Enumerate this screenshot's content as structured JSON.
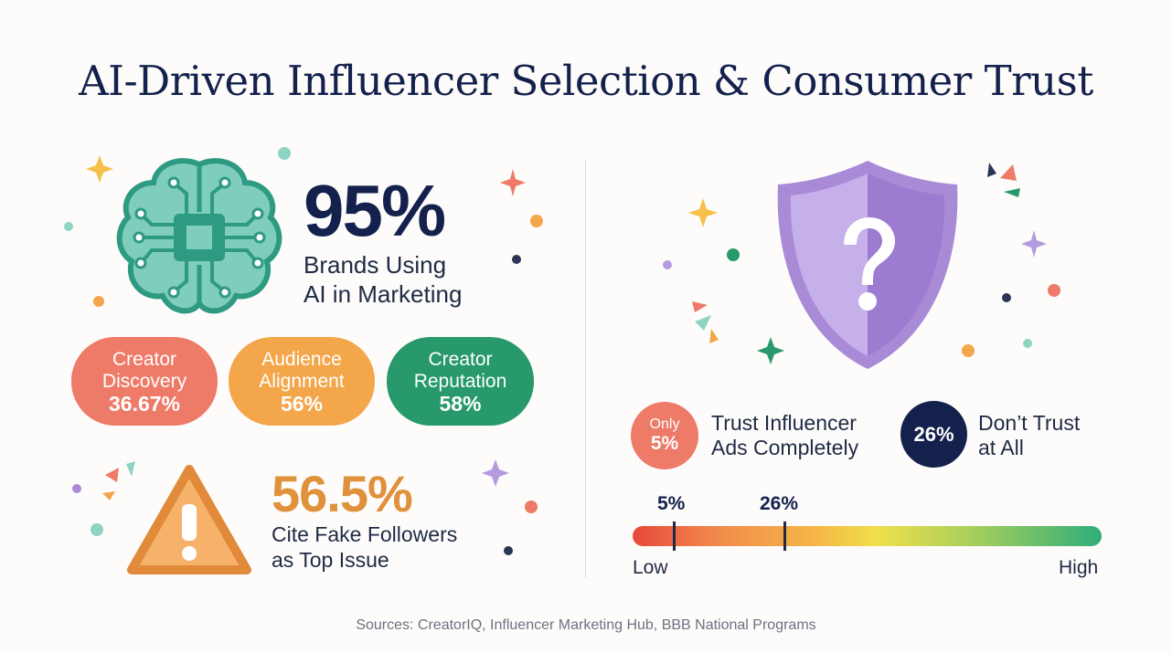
{
  "title": "AI-Driven Influencer Selection & Consumer Trust",
  "brands_stat": {
    "value": "95%",
    "line1": "Brands Using",
    "line2": "AI in Marketing"
  },
  "pills": [
    {
      "line1": "Creator",
      "line2": "Discovery",
      "value": "36.67%",
      "color": "#ee7a68"
    },
    {
      "line1": "Audience",
      "line2": "Alignment",
      "value": "56%",
      "color": "#f4a64a"
    },
    {
      "line1": "Creator",
      "line2": "Reputation",
      "value": "58%",
      "color": "#27996a"
    }
  ],
  "fake_stat": {
    "value": "56.5%",
    "line1": "Cite Fake Followers",
    "line2": "as Top Issue"
  },
  "trust": {
    "only_label": "Only",
    "only_value": "5%",
    "complete_line1": "Trust Influencer",
    "complete_line2": "Ads Completely",
    "none_value": "26%",
    "none_line1": "Don’t Trust",
    "none_line2": "at All"
  },
  "scale": {
    "marker1_label": "5%",
    "marker2_label": "26%",
    "low_label": "Low",
    "high_label": "High",
    "marker1_value": 5,
    "marker2_value": 26
  },
  "icons": [
    "brain-chip-icon",
    "warning-triangle-icon",
    "shield-question-icon"
  ],
  "colors": {
    "navy": "#14214d",
    "coral": "#ee7a68",
    "orange": "#f4a64a",
    "green": "#27996a",
    "purple": "#a98ad6"
  },
  "sources": "Sources: CreatorIQ, Influencer Marketing Hub, BBB National Programs"
}
